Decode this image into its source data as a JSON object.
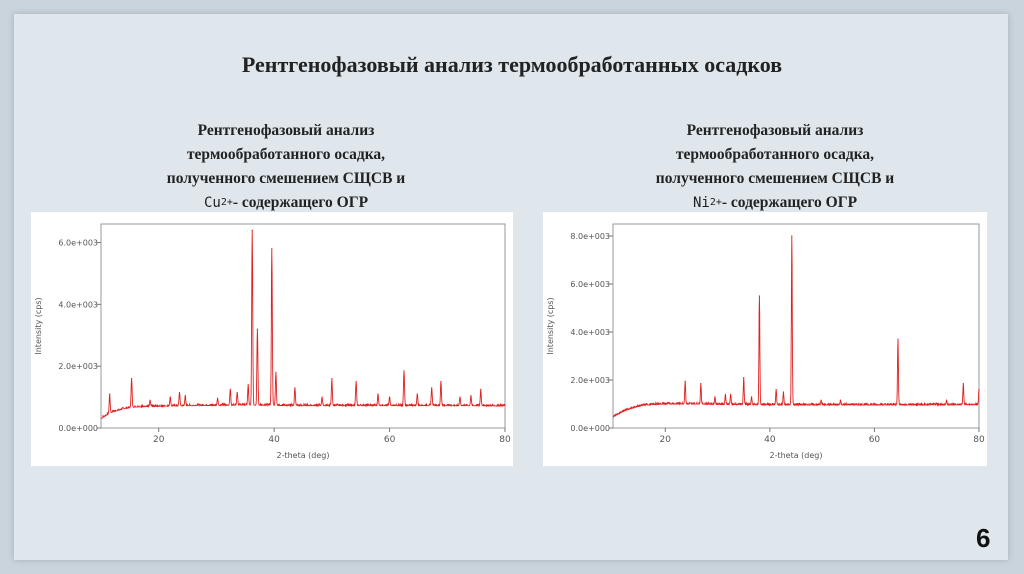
{
  "title": "Рентгенофазовый анализ термообработанных осадков",
  "left": {
    "caption": [
      "Рентгенофазовый анализ",
      "термообработанного осадка,",
      "полученного смешением СЩСВ и"
    ],
    "ion_base": "Cu",
    "ion_charge": "2+",
    "ion_suffix": "- содержащего ОГР"
  },
  "right": {
    "caption": [
      "Рентгенофазовый анализ",
      "термообработанного осадка,",
      "полученного смешением СЩСВ и"
    ],
    "ion_base": "Ni",
    "ion_charge": "2+",
    "ion_suffix": "- содержащего ОГР"
  },
  "page_number": "6",
  "chart_data": [
    {
      "type": "line",
      "series": [
        {
          "color": "#e02020",
          "points": [
            [
              10,
              300
            ],
            [
              11,
              420
            ],
            [
              12,
              520
            ],
            [
              14,
              620
            ],
            [
              16,
              680
            ],
            [
              20,
              700
            ],
            [
              25,
              720
            ],
            [
              30,
              730
            ],
            [
              35,
              740
            ],
            [
              40,
              730
            ],
            [
              45,
              720
            ],
            [
              50,
              720
            ],
            [
              55,
              720
            ],
            [
              60,
              720
            ],
            [
              65,
              720
            ],
            [
              70,
              720
            ],
            [
              75,
              720
            ],
            [
              80,
              710
            ]
          ],
          "peaks": [
            [
              11.5,
              1100
            ],
            [
              15.3,
              1600
            ],
            [
              18.5,
              900
            ],
            [
              22.0,
              1000
            ],
            [
              23.6,
              1150
            ],
            [
              24.6,
              1050
            ],
            [
              30.2,
              950
            ],
            [
              32.4,
              1250
            ],
            [
              33.6,
              1150
            ],
            [
              35.5,
              1400
            ],
            [
              36.2,
              6400
            ],
            [
              37.1,
              3200
            ],
            [
              39.6,
              5800
            ],
            [
              40.3,
              1800
            ],
            [
              43.6,
              1300
            ],
            [
              48.3,
              1000
            ],
            [
              50.0,
              1600
            ],
            [
              54.2,
              1500
            ],
            [
              58.0,
              1100
            ],
            [
              60.0,
              1000
            ],
            [
              62.5,
              1850
            ],
            [
              64.8,
              1100
            ],
            [
              67.3,
              1300
            ],
            [
              68.9,
              1500
            ],
            [
              72.2,
              1000
            ],
            [
              74.1,
              1050
            ],
            [
              75.8,
              1250
            ]
          ]
        }
      ],
      "xlabel": "2-theta (deg)",
      "ylabel": "Intensity (cps)",
      "xlim": [
        10,
        80
      ],
      "ylim": [
        0,
        6600
      ],
      "xticks": [
        20,
        40,
        60,
        80
      ],
      "yticks": [
        0,
        2000,
        4000,
        6000
      ],
      "ytick_labels": [
        "0.0e+000",
        "2.0e+003",
        "4.0e+003",
        "6.0e+003"
      ]
    },
    {
      "type": "line",
      "series": [
        {
          "color": "#e02020",
          "points": [
            [
              10,
              450
            ],
            [
              12,
              700
            ],
            [
              14,
              850
            ],
            [
              16,
              950
            ],
            [
              20,
              1000
            ],
            [
              25,
              1000
            ],
            [
              30,
              980
            ],
            [
              35,
              970
            ],
            [
              40,
              960
            ],
            [
              45,
              960
            ],
            [
              50,
              960
            ],
            [
              55,
              960
            ],
            [
              60,
              960
            ],
            [
              65,
              960
            ],
            [
              70,
              960
            ],
            [
              75,
              960
            ],
            [
              80,
              970
            ]
          ],
          "peaks": [
            [
              23.8,
              1950
            ],
            [
              26.8,
              1850
            ],
            [
              29.5,
              1300
            ],
            [
              31.5,
              1400
            ],
            [
              32.5,
              1400
            ],
            [
              35.0,
              2100
            ],
            [
              36.5,
              1300
            ],
            [
              38.0,
              5500
            ],
            [
              41.2,
              1600
            ],
            [
              42.6,
              1500
            ],
            [
              44.2,
              8000
            ],
            [
              49.8,
              1150
            ],
            [
              53.5,
              1150
            ],
            [
              64.5,
              3700
            ],
            [
              73.8,
              1150
            ],
            [
              77.0,
              1850
            ],
            [
              80.0,
              1600
            ]
          ]
        }
      ],
      "xlabel": "2-theta (deg)",
      "ylabel": "Intensity (cps)",
      "xlim": [
        10,
        80
      ],
      "ylim": [
        0,
        8500
      ],
      "xticks": [
        20,
        40,
        60,
        80
      ],
      "yticks": [
        0,
        2000,
        4000,
        6000,
        8000
      ],
      "ytick_labels": [
        "0.0e+000",
        "2.0e+003",
        "4.0e+003",
        "6.0e+003",
        "8.0e+003"
      ]
    }
  ]
}
